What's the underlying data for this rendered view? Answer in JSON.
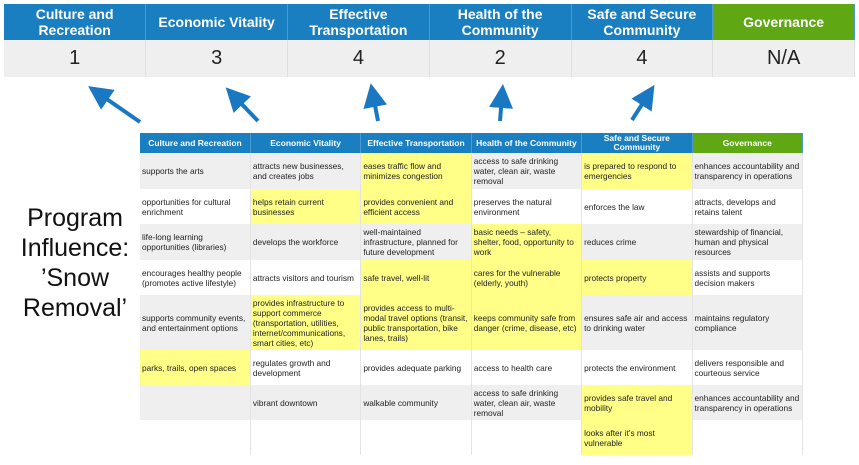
{
  "summary": {
    "headers": [
      "Culture and Recreation",
      "Economic Vitality",
      "Effective Transportation",
      "Health of the Community",
      "Safe and Secure Community",
      "Governance"
    ],
    "scores": [
      "1",
      "3",
      "4",
      "2",
      "4",
      "N/A"
    ]
  },
  "program_label": {
    "line1": "Program",
    "line2": "Influence:",
    "line3": "’Snow",
    "line4": "Removal’"
  },
  "colors": {
    "header_blue": "#1a7fc1",
    "governance_green": "#5fa814",
    "highlight_yellow": "#ffff88",
    "arrow_blue": "#1a78c2"
  },
  "grid": {
    "headers": [
      "Culture and Recreation",
      "Economic Vitality",
      "Effective Transportation",
      "Health of the Community",
      "Safe and Secure Community",
      "Governance"
    ],
    "rows": [
      [
        {
          "t": "supports the arts",
          "h": false
        },
        {
          "t": "attracts new businesses, and creates jobs",
          "h": false
        },
        {
          "t": "eases traffic flow and minimizes congestion",
          "h": true
        },
        {
          "t": "access to safe drinking water, clean air, waste removal",
          "h": false
        },
        {
          "t": "is prepared to respond to emergencies",
          "h": true
        },
        {
          "t": "enhances accountability and transparency in operations",
          "h": false
        }
      ],
      [
        {
          "t": "opportunities for cultural enrichment",
          "h": false
        },
        {
          "t": "helps retain current businesses",
          "h": true
        },
        {
          "t": "provides convenient and efficient access",
          "h": true
        },
        {
          "t": "preserves the natural environment",
          "h": false
        },
        {
          "t": "enforces the law",
          "h": false
        },
        {
          "t": "attracts, develops and retains talent",
          "h": false
        }
      ],
      [
        {
          "t": "life-long learning opportunities (libraries)",
          "h": false
        },
        {
          "t": "develops the workforce",
          "h": false
        },
        {
          "t": "well-maintained infrastructure, planned for future development",
          "h": false
        },
        {
          "t": "basic needs – safety, shelter, food, opportunity to work",
          "h": true
        },
        {
          "t": "reduces crime",
          "h": false
        },
        {
          "t": "stewardship of financial, human and physical resources",
          "h": false
        }
      ],
      [
        {
          "t": "encourages healthy people (promotes active lifestyle)",
          "h": false
        },
        {
          "t": "attracts visitors and tourism",
          "h": false
        },
        {
          "t": "safe travel, well-lit",
          "h": true
        },
        {
          "t": "cares for the vulnerable (elderly, youth)",
          "h": true
        },
        {
          "t": "protects property",
          "h": true
        },
        {
          "t": "assists and supports decision makers",
          "h": false
        }
      ],
      [
        {
          "t": "supports community events, and entertainment options",
          "h": false
        },
        {
          "t": "provides infrastructure to support commerce (transportation, utilities, internet/communications, smart cities, etc)",
          "h": true
        },
        {
          "t": "provides access to multi-modal travel options (transit, public transportation, bike lanes, trails)",
          "h": true
        },
        {
          "t": "keeps community safe from danger (crime, disease, etc)",
          "h": true
        },
        {
          "t": "ensures safe air and access to drinking water",
          "h": false
        },
        {
          "t": "maintains regulatory compliance",
          "h": false
        }
      ],
      [
        {
          "t": "parks, trails, open spaces",
          "h": true
        },
        {
          "t": "regulates growth and development",
          "h": false
        },
        {
          "t": "provides adequate parking",
          "h": false
        },
        {
          "t": "access to health care",
          "h": false
        },
        {
          "t": "protects the environment",
          "h": false
        },
        {
          "t": "delivers responsible and courteous service",
          "h": false
        }
      ],
      [
        {
          "t": "",
          "h": false
        },
        {
          "t": "vibrant downtown",
          "h": false
        },
        {
          "t": "walkable community",
          "h": false
        },
        {
          "t": "access to safe drinking water, clean air, waste removal",
          "h": false
        },
        {
          "t": "provides safe travel and mobility",
          "h": true
        },
        {
          "t": "enhances accountability and transparency in operations",
          "h": false
        }
      ],
      [
        {
          "t": "",
          "h": false
        },
        {
          "t": "",
          "h": false
        },
        {
          "t": "",
          "h": false
        },
        {
          "t": "",
          "h": false
        },
        {
          "t": "looks after it's most vulnerable",
          "h": true
        },
        {
          "t": "",
          "h": false
        }
      ]
    ]
  }
}
